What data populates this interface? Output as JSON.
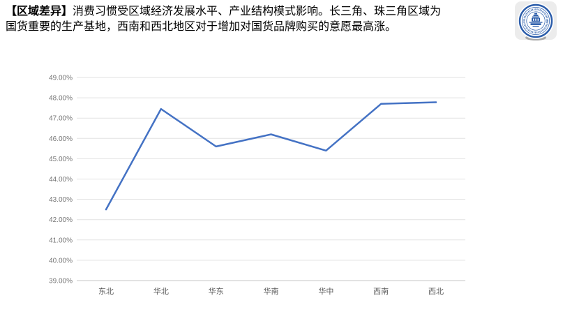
{
  "page": {
    "background": "#ffffff"
  },
  "header": {
    "line1_bold": "【区域差异】",
    "line1_rest": "消费习惯受区域经济发展水平、产业结构模式影响。长三角、珠三角区域为",
    "line2": "国货重要的生产基地，西南和西北地区对于增加对国货品牌购买的意愿最高涨。"
  },
  "logo": {
    "shape": "circular-university-seal",
    "ring_color": "#2a5caa"
  },
  "chart_data": {
    "type": "line",
    "title": "",
    "xlabel": "",
    "ylabel": "",
    "categories": [
      "东北",
      "华北",
      "华东",
      "华南",
      "华中",
      "西南",
      "西北"
    ],
    "values": [
      42.5,
      47.45,
      45.6,
      46.2,
      45.4,
      47.7,
      47.78
    ],
    "ylim": [
      39,
      49
    ],
    "y_tick_step": 1,
    "y_ticks": [
      "49.00%",
      "48.00%",
      "47.00%",
      "46.00%",
      "45.00%",
      "44.00%",
      "43.00%",
      "42.00%",
      "41.00%",
      "40.00%",
      "39.00%"
    ],
    "grid": true,
    "legend": "none",
    "line_color": "#4472c4",
    "gridline_color": "#e2e2e2",
    "axis_line_color": "#c4c4c4",
    "y_tick_label_color": "#757575",
    "x_tick_label_color": "#595959"
  }
}
